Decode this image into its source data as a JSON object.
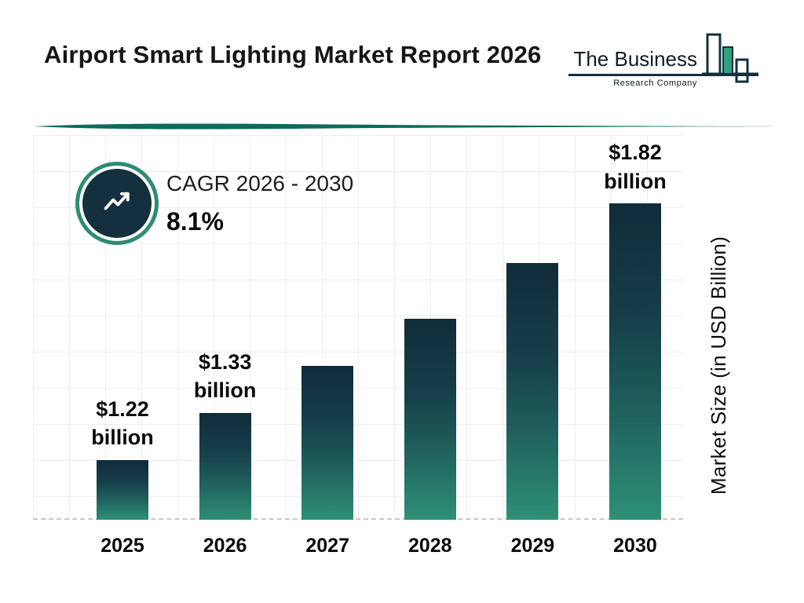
{
  "header": {
    "title": "Airport Smart Lighting Market Report 2026",
    "logo": {
      "line1": "The Business",
      "line2": "Research Company"
    }
  },
  "cagr": {
    "icon": "trend-up-arrow-icon",
    "label": "CAGR 2026 - 2030",
    "value": "8.1%"
  },
  "chart_data": {
    "type": "bar",
    "title": "Airport Smart Lighting Market Report 2026",
    "categories": [
      "2025",
      "2026",
      "2027",
      "2028",
      "2029",
      "2030"
    ],
    "values": [
      1.22,
      1.33,
      1.44,
      1.55,
      1.68,
      1.82
    ],
    "unit": "USD Billion",
    "ylabel": "Market Size (in USD Billion)",
    "ylim": [
      1.08,
      1.98
    ],
    "grid": true,
    "legend": "none",
    "value_labels": {
      "2025": {
        "line1": "$1.22",
        "line2": "billion"
      },
      "2026": {
        "line1": "$1.33",
        "line2": "billion"
      },
      "2030": {
        "line1": "$1.82",
        "line2": "billion"
      }
    },
    "annotations": {
      "cagr_label": "CAGR 2026 - 2030",
      "cagr_value": "8.1%"
    },
    "colors": {
      "bar_top": "#112b39",
      "bar_bottom": "#2e9076",
      "divider_teal": "#0f6a59",
      "ring_teal": "#2e8b74",
      "circle_navy": "#14303e",
      "logo_teal": "#2fa183",
      "logo_navy": "#13303d"
    }
  }
}
